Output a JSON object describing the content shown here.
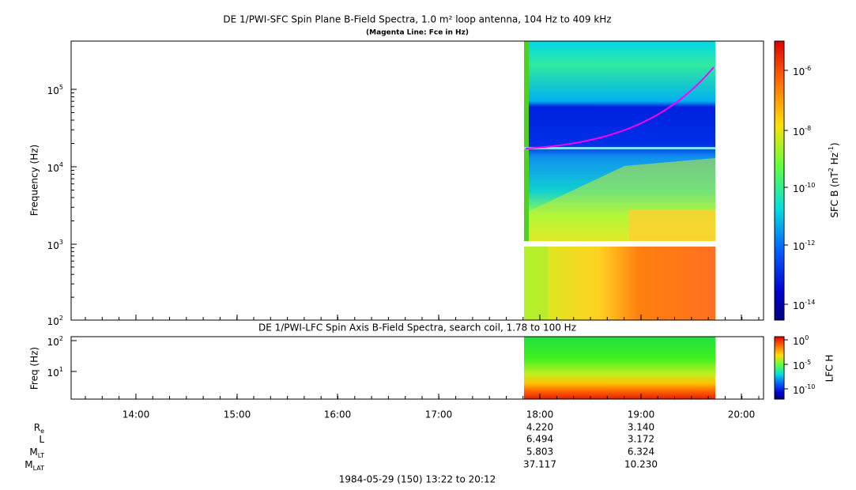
{
  "top_panel": {
    "title": "DE 1/PWI-SFC  Spin Plane B-Field Spectra, 1.0 m² loop antenna, 104 Hz to 409 kHz",
    "subtitle": "(Magenta Line: Fce in Hz)",
    "y_label": "Frequency (Hz)",
    "y_ticks": [
      {
        "base": "10",
        "exp": "2"
      },
      {
        "base": "10",
        "exp": "3"
      },
      {
        "base": "10",
        "exp": "4"
      },
      {
        "base": "10",
        "exp": "5"
      }
    ],
    "colorbar_label": [
      "SFC B (nT",
      "2",
      " Hz",
      "-1",
      ")"
    ],
    "colorbar_ticks": [
      {
        "base": "10",
        "exp": "-6"
      },
      {
        "base": "10",
        "exp": "-8"
      },
      {
        "base": "10",
        "exp": "-10"
      },
      {
        "base": "10",
        "exp": "-12"
      },
      {
        "base": "10",
        "exp": "-14"
      }
    ]
  },
  "bottom_panel": {
    "title": "DE 1/PWI-LFC  Spin Axis B-Field Spectra, search coil, 1.78 to 100 Hz",
    "y_label": "Freq (Hz)",
    "y_ticks": [
      {
        "base": "10",
        "exp": "1"
      },
      {
        "base": "10",
        "exp": "2"
      }
    ],
    "colorbar_label": "LFC H",
    "colorbar_ticks": [
      {
        "base": "10",
        "exp": "0"
      },
      {
        "base": "10",
        "exp": "-5"
      },
      {
        "base": "10",
        "exp": "-10"
      }
    ]
  },
  "time_ticks": [
    "14:00",
    "15:00",
    "16:00",
    "17:00",
    "18:00",
    "19:00",
    "20:00"
  ],
  "ephemeris": [
    {
      "label": "R",
      "sub": "e",
      "values": [
        "4.220",
        "3.140"
      ]
    },
    {
      "label": "L",
      "sub": "",
      "values": [
        "6.494",
        "3.172"
      ]
    },
    {
      "label": "M",
      "sub": "LT",
      "values": [
        "5.803",
        "6.324"
      ]
    },
    {
      "label": "M",
      "sub": "LAT",
      "values": [
        "37.117",
        "10.230"
      ]
    }
  ],
  "footer": "1984-05-29 (150) 13:22 to 20:12"
}
